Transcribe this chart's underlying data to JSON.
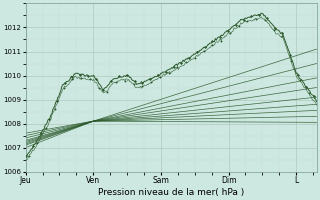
{
  "background_color": "#cce8e0",
  "plot_bg_color": "#cce8e0",
  "grid_color_major": "#b0c8c0",
  "grid_color_minor": "#c8dcd8",
  "line_color": "#2d5a2d",
  "xlabel": "Pression niveau de la mer( hPa )",
  "ylim": [
    1006.0,
    1013.0
  ],
  "yticks": [
    1006,
    1007,
    1008,
    1009,
    1010,
    1011,
    1012
  ],
  "xtick_positions": [
    0,
    1,
    2,
    3,
    4
  ],
  "xtick_labels": [
    "Jeu",
    "Ven",
    "Sam",
    "Dim",
    "L"
  ],
  "total_days": 4.3,
  "convergence_t": 1.0,
  "convergence_val": 1008.1,
  "n_ensemble": 9
}
